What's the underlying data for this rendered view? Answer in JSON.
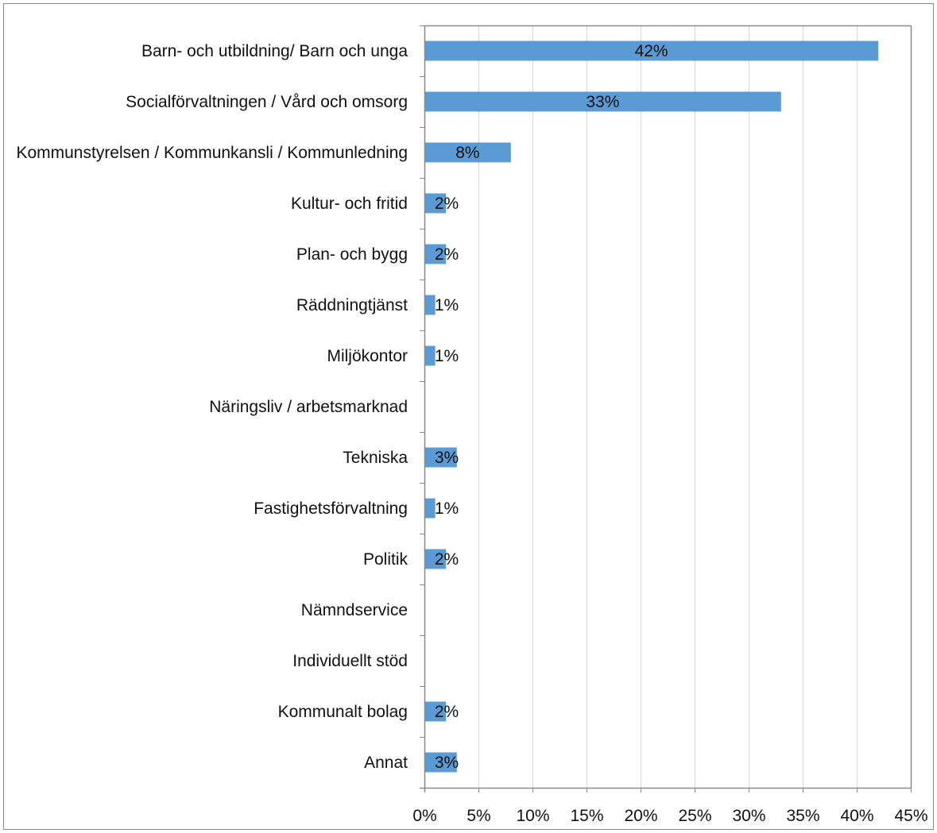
{
  "chart_data": {
    "type": "bar",
    "orientation": "horizontal",
    "title": "",
    "xlabel": "",
    "ylabel": "",
    "categories": [
      "Barn- och utbildning/ Barn och unga",
      "Socialförvaltningen / Vård och omsorg",
      "Kommunstyrelsen / Kommunkansli / Kommunledning",
      "Kultur- och fritid",
      "Plan- och bygg",
      "Räddningtjänst",
      "Miljökontor",
      "Näringsliv / arbetsmarknad",
      "Tekniska",
      "Fastighetsförvaltning",
      "Politik",
      "Nämndservice",
      "Individuellt stöd",
      "Kommunalt bolag",
      "Annat"
    ],
    "values": [
      42,
      33,
      8,
      2,
      2,
      1,
      1,
      0,
      3,
      1,
      2,
      0,
      0,
      2,
      3
    ],
    "data_labels": [
      "42%",
      "33%",
      "8%",
      "2%",
      "2%",
      "1%",
      "1%",
      "",
      "3%",
      "1%",
      "2%",
      "",
      "",
      "2%",
      "3%"
    ],
    "xlim": [
      0,
      45
    ],
    "x_ticks": [
      0,
      5,
      10,
      15,
      20,
      25,
      30,
      35,
      40,
      45
    ],
    "x_tick_labels": [
      "0%",
      "5%",
      "10%",
      "15%",
      "20%",
      "25%",
      "30%",
      "35%",
      "40%",
      "45%"
    ],
    "grid": "vertical",
    "legend": "none",
    "colors": {
      "bar": "#5b9bd5",
      "grid": "#d9d9d9",
      "axis": "#898989",
      "frame": "#898989",
      "text": "#111111"
    }
  }
}
